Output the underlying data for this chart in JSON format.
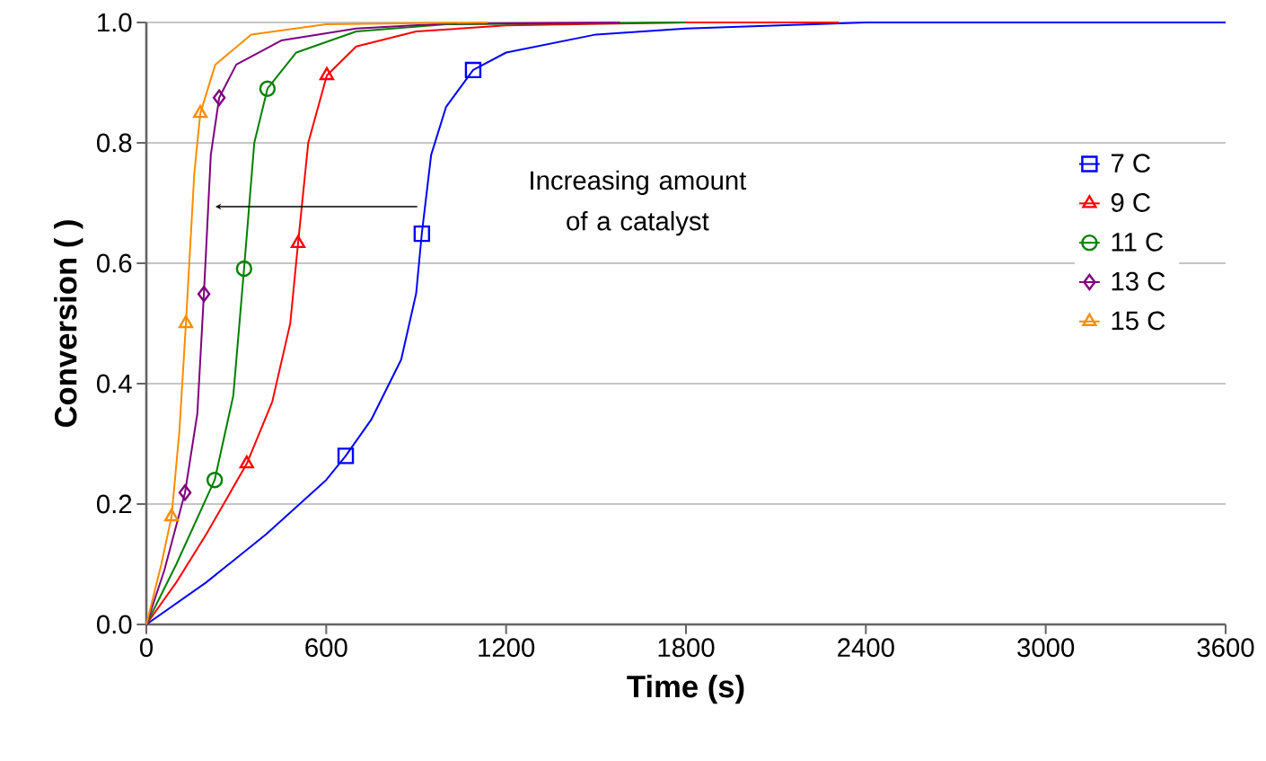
{
  "chart_data": {
    "type": "line",
    "xlabel": "Time (s)",
    "ylabel": "Conversion ( )",
    "xlim": [
      0,
      3600
    ],
    "xticks": [
      0,
      600,
      1200,
      1800,
      2400,
      3000,
      3600
    ],
    "ylim": [
      0,
      1
    ],
    "yticks": [
      {
        "value": 0,
        "label": "0.0"
      },
      0.2,
      0.4,
      0.6,
      0.8,
      {
        "value": 1,
        "label": "1.0"
      }
    ],
    "grid": "y",
    "legend": "right",
    "annotations": [
      "Increasing amount of a catalyst"
    ],
    "series": [
      {
        "color": "#0000ff",
        "x": [
          0,
          200,
          400,
          600,
          665,
          750,
          850,
          900,
          919,
          950,
          1000,
          1090,
          1200,
          1500,
          1800,
          2400,
          3600
        ],
        "values": [
          0,
          0.07,
          0.15,
          0.24,
          0.28,
          0.34,
          0.44,
          0.55,
          0.65,
          0.78,
          0.86,
          0.921,
          0.95,
          0.98,
          0.99,
          1.0,
          1.0
        ]
      },
      {
        "name": "7 C",
        "type": "scatter",
        "color": "#0000ff",
        "marker": "square",
        "x": [
          665,
          919,
          1090
        ],
        "values": [
          0.28,
          0.649,
          0.921
        ]
      },
      {
        "color": "#ff0000",
        "x": [
          0,
          100,
          200,
          335,
          420,
          480,
          506,
          540,
          602,
          700,
          900,
          1200,
          1800,
          2310
        ],
        "values": [
          0,
          0.07,
          0.15,
          0.267,
          0.37,
          0.5,
          0.633,
          0.8,
          0.912,
          0.96,
          0.985,
          0.995,
          1.0,
          1.0
        ]
      },
      {
        "name": "9 C",
        "type": "scatter",
        "color": "#ff0000",
        "marker": "triangle",
        "x": [
          335,
          506,
          602
        ],
        "values": [
          0.267,
          0.633,
          0.912
        ]
      },
      {
        "color": "#008000",
        "x": [
          0,
          100,
          228,
          290,
          326,
          360,
          404,
          500,
          700,
          1000,
          1800
        ],
        "values": [
          0,
          0.1,
          0.24,
          0.38,
          0.591,
          0.8,
          0.89,
          0.95,
          0.985,
          0.997,
          1.0
        ]
      },
      {
        "name": "11 C",
        "type": "scatter",
        "color": "#008000",
        "marker": "circle",
        "x": [
          228,
          326,
          404
        ],
        "values": [
          0.24,
          0.591,
          0.89
        ]
      },
      {
        "color": "#7f007f",
        "x": [
          0,
          60,
          129,
          170,
          192,
          215,
          243,
          300,
          450,
          700,
          1000,
          1580
        ],
        "values": [
          0,
          0.09,
          0.219,
          0.35,
          0.549,
          0.78,
          0.875,
          0.93,
          0.97,
          0.99,
          0.998,
          1.0
        ]
      },
      {
        "name": "13 C",
        "type": "scatter",
        "color": "#7f007f",
        "marker": "diamond",
        "x": [
          129,
          192,
          243
        ],
        "values": [
          0.219,
          0.549,
          0.875
        ]
      },
      {
        "color": "#ff8c00",
        "x": [
          0,
          50,
          84,
          110,
          132,
          160,
          180,
          230,
          350,
          600,
          1140
        ],
        "values": [
          0,
          0.1,
          0.179,
          0.32,
          0.5,
          0.75,
          0.849,
          0.93,
          0.98,
          0.997,
          1.0
        ]
      },
      {
        "name": "15 C",
        "type": "scatter",
        "color": "#ff8c00",
        "marker": "triangle",
        "x": [
          84,
          132,
          180
        ],
        "values": [
          0.179,
          0.5,
          0.849
        ]
      }
    ]
  }
}
